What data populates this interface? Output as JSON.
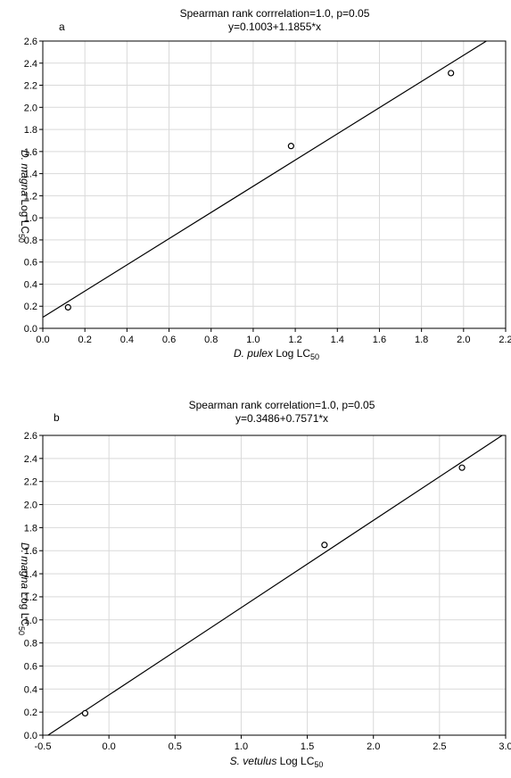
{
  "chart_data": [
    {
      "type": "scatter",
      "panel_label": "a",
      "title": "Spearman rank corrrelation=1.0, p=0.05",
      "subtitle": "y=0.1003+1.1855*x",
      "xlabel_italic": "D. pulex",
      "xlabel_rest": " Log LC",
      "xlabel_sub": "50",
      "ylabel_italic": "D. magna",
      "ylabel_rest": " Log LC",
      "ylabel_sub": "50",
      "xlim": [
        0.0,
        2.2
      ],
      "ylim": [
        0.0,
        2.6
      ],
      "xticks": [
        0.0,
        0.2,
        0.4,
        0.6,
        0.8,
        1.0,
        1.2,
        1.4,
        1.6,
        1.8,
        2.0,
        2.2
      ],
      "yticks": [
        0.0,
        0.2,
        0.4,
        0.6,
        0.8,
        1.0,
        1.2,
        1.4,
        1.6,
        1.8,
        2.0,
        2.2,
        2.4,
        2.6
      ],
      "xtick_labels": [
        "0.0",
        "0.2",
        "0.4",
        "0.6",
        "0.8",
        "1.0",
        "1.2",
        "1.4",
        "1.6",
        "1.8",
        "2.0",
        "2.2"
      ],
      "ytick_labels": [
        "0.0",
        "0.2",
        "0.4",
        "0.6",
        "0.8",
        "1.0",
        "1.2",
        "1.4",
        "1.6",
        "1.8",
        "2.0",
        "2.2",
        "2.4",
        "2.6"
      ],
      "grid": true,
      "points": [
        {
          "x": 0.12,
          "y": 0.19
        },
        {
          "x": 1.18,
          "y": 1.65
        },
        {
          "x": 1.94,
          "y": 2.31
        }
      ],
      "fit": {
        "intercept": 0.1003,
        "slope": 1.1855
      }
    },
    {
      "type": "scatter",
      "panel_label": "b",
      "title": "Spearman rank correlation=1.0, p=0.05",
      "subtitle": "y=0.3486+0.7571*x",
      "xlabel_italic": "S. vetulus",
      "xlabel_rest": " Log LC",
      "xlabel_sub": "50",
      "ylabel_italic": "D. magna",
      "ylabel_rest": " Log LC",
      "ylabel_sub": "50",
      "xlim": [
        -0.5,
        3.0
      ],
      "ylim": [
        0.0,
        2.6
      ],
      "xticks": [
        -0.5,
        0.0,
        0.5,
        1.0,
        1.5,
        2.0,
        2.5,
        3.0
      ],
      "yticks": [
        0.0,
        0.2,
        0.4,
        0.6,
        0.8,
        1.0,
        1.2,
        1.4,
        1.6,
        1.8,
        2.0,
        2.2,
        2.4,
        2.6
      ],
      "xtick_labels": [
        "-0.5",
        "0.0",
        "0.5",
        "1.0",
        "1.5",
        "2.0",
        "2.5",
        "3.0"
      ],
      "ytick_labels": [
        "0.0",
        "0.2",
        "0.4",
        "0.6",
        "0.8",
        "1.0",
        "1.2",
        "1.4",
        "1.6",
        "1.8",
        "2.0",
        "2.2",
        "2.4",
        "2.6"
      ],
      "grid": true,
      "points": [
        {
          "x": -0.18,
          "y": 0.19
        },
        {
          "x": 1.63,
          "y": 1.65
        },
        {
          "x": 2.67,
          "y": 2.32
        }
      ],
      "fit": {
        "intercept": 0.3486,
        "slope": 0.7571
      }
    }
  ]
}
